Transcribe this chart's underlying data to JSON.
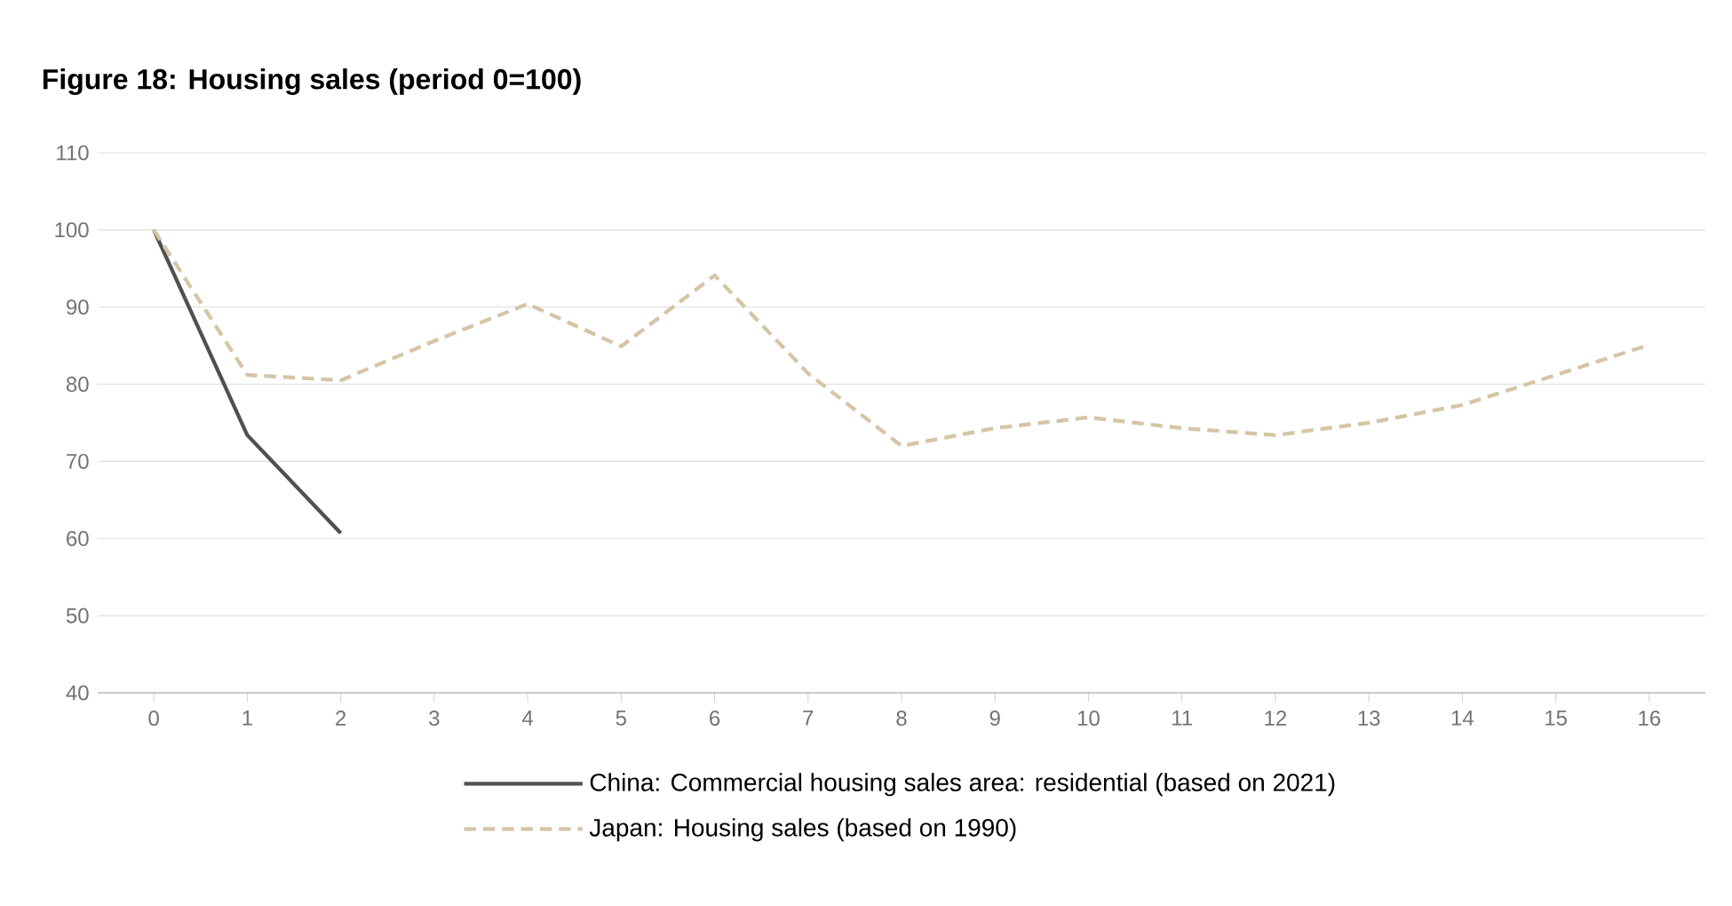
{
  "chart_data": {
    "type": "line",
    "title": "Figure 18: Housing sales (period 0=100)",
    "x": [
      0,
      1,
      2,
      3,
      4,
      5,
      6,
      7,
      8,
      9,
      10,
      11,
      12,
      13,
      14,
      15,
      16
    ],
    "series": [
      {
        "name": "China: Commercial housing sales area: residential (based on 2021)",
        "color": "#505050",
        "line_style": "solid",
        "x": [
          0,
          1,
          2
        ],
        "values": [
          100,
          73.4,
          60.7
        ]
      },
      {
        "name": "Japan: Housing sales (based on 1990)",
        "color": "#d5c5a6",
        "line_style": "dashed",
        "values": [
          100,
          81.2,
          80.5,
          85.6,
          90.4,
          84.9,
          94.1,
          81.4,
          72.0,
          74.3,
          75.7,
          74.3,
          73.4,
          75.0,
          77.3,
          81.2,
          85.1
        ]
      }
    ],
    "xlim": [
      -0.6,
      16.6
    ],
    "xticks": [
      0,
      1,
      2,
      3,
      4,
      5,
      6,
      7,
      8,
      9,
      10,
      11,
      12,
      13,
      14,
      15,
      16
    ],
    "ylim": [
      40,
      110
    ],
    "yticks": [
      40,
      50,
      60,
      70,
      80,
      90,
      100,
      110
    ],
    "grid": "y",
    "legend": "bottom"
  }
}
